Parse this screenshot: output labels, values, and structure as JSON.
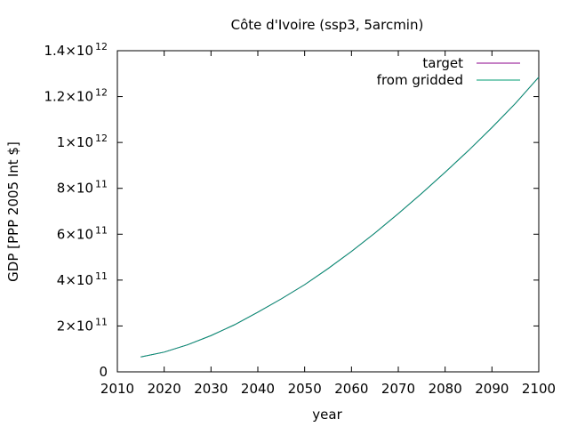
{
  "chart_data": {
    "type": "line",
    "title": "Côte d'Ivoire (ssp3, 5arcmin)",
    "xlabel": "year",
    "ylabel": "GDP [PPP 2005 Int $]",
    "xlim": [
      2010,
      2100
    ],
    "ylim": [
      0,
      1400000000000
    ],
    "x_ticks": [
      2010,
      2020,
      2030,
      2040,
      2050,
      2060,
      2070,
      2080,
      2090,
      2100
    ],
    "y_ticks": [
      {
        "value": 0,
        "mantissa": "0",
        "exponent": ""
      },
      {
        "value": 200000000000,
        "mantissa": "2×10",
        "exponent": "11"
      },
      {
        "value": 400000000000,
        "mantissa": "4×10",
        "exponent": "11"
      },
      {
        "value": 600000000000,
        "mantissa": "6×10",
        "exponent": "11"
      },
      {
        "value": 800000000000,
        "mantissa": "8×10",
        "exponent": "11"
      },
      {
        "value": 1000000000000,
        "mantissa": "1×10",
        "exponent": "12"
      },
      {
        "value": 1200000000000,
        "mantissa": "1.2×10",
        "exponent": "12"
      },
      {
        "value": 1400000000000,
        "mantissa": "1.4×10",
        "exponent": "12"
      }
    ],
    "grid": false,
    "legend": "top-right",
    "x": [
      2015,
      2020,
      2025,
      2030,
      2035,
      2040,
      2045,
      2050,
      2055,
      2060,
      2065,
      2070,
      2075,
      2080,
      2085,
      2090,
      2095,
      2100
    ],
    "series": [
      {
        "name": "target",
        "color": "#8b008b",
        "values": [
          65000000000,
          86000000000,
          118000000000,
          158000000000,
          205000000000,
          260000000000,
          318000000000,
          380000000000,
          450000000000,
          525000000000,
          605000000000,
          690000000000,
          778000000000,
          870000000000,
          965000000000,
          1065000000000,
          1170000000000,
          1285000000000
        ]
      },
      {
        "name": "from gridded",
        "color": "#009e73",
        "values": [
          65000000000,
          86000000000,
          118000000000,
          158000000000,
          205000000000,
          260000000000,
          318000000000,
          380000000000,
          450000000000,
          525000000000,
          605000000000,
          690000000000,
          778000000000,
          870000000000,
          965000000000,
          1065000000000,
          1170000000000,
          1285000000000
        ]
      }
    ]
  }
}
